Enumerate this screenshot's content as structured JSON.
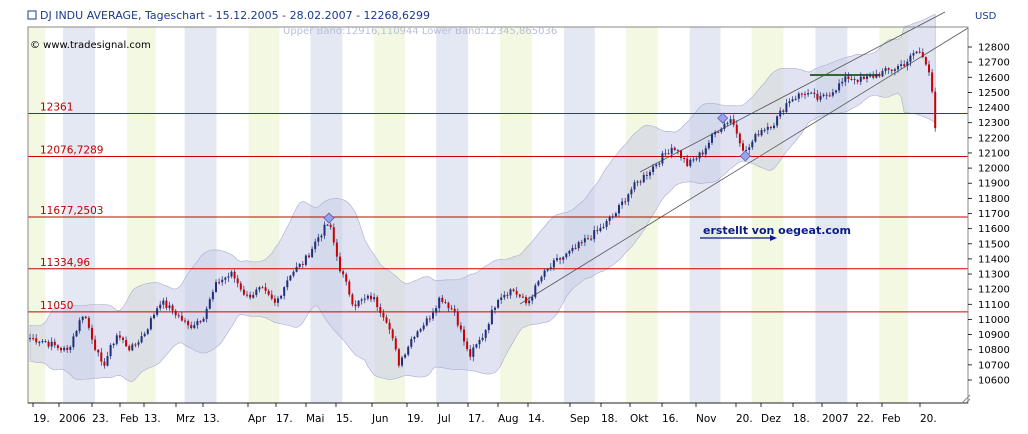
{
  "header": {
    "title": "DJ INDU AVERAGE, Tageschart - 15.12.2005 - 28.02.2007 - 12268,6299",
    "band_legend": "Upper Band:12916,110944 Lower Band:12345,865036",
    "watermark": "© www.tradesignal.com",
    "credit": "erstellt von oegeat.com",
    "currency": "USD"
  },
  "colors": {
    "support_line": "#cc0000",
    "candle_up": "#1f2f7a",
    "candle_down": "#cc0000",
    "band_fill": "#c8cce8",
    "stripe": "#e4e8f2",
    "stripe_alt": "#f3f8e2",
    "trend_line": "#555555",
    "marker": "#9aa2e8"
  },
  "chart_data": {
    "type": "candlestick",
    "title": "DJ INDU AVERAGE, Tageschart - 15.12.2005 - 28.02.2007 - 12268,6299",
    "ylabel": "USD",
    "ylim": [
      10500,
      12900
    ],
    "yticks": [
      10600,
      10700,
      10800,
      10900,
      11000,
      11100,
      11200,
      11300,
      11400,
      11500,
      11600,
      11700,
      11800,
      11900,
      12000,
      12100,
      12200,
      12300,
      12400,
      12500,
      12600,
      12700,
      12800
    ],
    "xticks": [
      "19.",
      "2006",
      "23.",
      "Feb",
      "13.",
      "Mrz",
      "13.",
      "Apr",
      "17.",
      "Mai",
      "15.",
      "Jun",
      "19.",
      "Jul",
      "17.",
      "Aug",
      "14.",
      "Sep",
      "18.",
      "Okt",
      "16.",
      "Nov",
      "20.",
      "Dez",
      "18.",
      "2007",
      "22.",
      "Feb",
      "20."
    ],
    "support_lines": [
      {
        "label": "12361",
        "value": 12361
      },
      {
        "label": "12076,7289",
        "value": 12076.7289
      },
      {
        "label": "11677,2503",
        "value": 11677.2503
      },
      {
        "label": "11334,96",
        "value": 11334.96
      },
      {
        "label": "11050",
        "value": 11050
      }
    ],
    "bollinger_last": {
      "upper": 12916.110944,
      "lower": 12345.865036
    },
    "close_path": [
      [
        "2005-12-15",
        10880
      ],
      [
        "2005-12-22",
        10860
      ],
      [
        "2006-01-03",
        10790
      ],
      [
        "2006-01-11",
        11050
      ],
      [
        "2006-01-20",
        10680
      ],
      [
        "2006-01-27",
        10900
      ],
      [
        "2006-02-03",
        10800
      ],
      [
        "2006-02-10",
        10920
      ],
      [
        "2006-02-17",
        11120
      ],
      [
        "2006-02-24",
        11050
      ],
      [
        "2006-03-03",
        10950
      ],
      [
        "2006-03-10",
        11020
      ],
      [
        "2006-03-17",
        11250
      ],
      [
        "2006-03-24",
        11300
      ],
      [
        "2006-03-31",
        11150
      ],
      [
        "2006-04-07",
        11200
      ],
      [
        "2006-04-14",
        11100
      ],
      [
        "2006-04-21",
        11300
      ],
      [
        "2006-04-28",
        11380
      ],
      [
        "2006-05-05",
        11550
      ],
      [
        "2006-05-10",
        11640
      ],
      [
        "2006-05-15",
        11350
      ],
      [
        "2006-05-22",
        11100
      ],
      [
        "2006-05-31",
        11150
      ],
      [
        "2006-06-07",
        11000
      ],
      [
        "2006-06-13",
        10710
      ],
      [
        "2006-06-20",
        10900
      ],
      [
        "2006-06-27",
        11000
      ],
      [
        "2006-07-03",
        11150
      ],
      [
        "2006-07-10",
        11050
      ],
      [
        "2006-07-17",
        10750
      ],
      [
        "2006-07-24",
        10900
      ],
      [
        "2006-07-31",
        11150
      ],
      [
        "2006-08-07",
        11200
      ],
      [
        "2006-08-14",
        11100
      ],
      [
        "2006-08-21",
        11280
      ],
      [
        "2006-08-28",
        11380
      ],
      [
        "2006-09-05",
        11450
      ],
      [
        "2006-09-12",
        11530
      ],
      [
        "2006-09-19",
        11600
      ],
      [
        "2006-09-26",
        11700
      ],
      [
        "2006-10-03",
        11850
      ],
      [
        "2006-10-10",
        11950
      ],
      [
        "2006-10-17",
        12050
      ],
      [
        "2006-10-24",
        12150
      ],
      [
        "2006-10-31",
        12020
      ],
      [
        "2006-11-07",
        12100
      ],
      [
        "2006-11-14",
        12250
      ],
      [
        "2006-11-21",
        12330
      ],
      [
        "2006-11-28",
        12100
      ],
      [
        "2006-12-05",
        12250
      ],
      [
        "2006-12-12",
        12300
      ],
      [
        "2006-12-19",
        12450
      ],
      [
        "2006-12-27",
        12500
      ],
      [
        "2007-01-03",
        12450
      ],
      [
        "2007-01-10",
        12520
      ],
      [
        "2007-01-17",
        12600
      ],
      [
        "2007-01-24",
        12580
      ],
      [
        "2007-01-31",
        12620
      ],
      [
        "2007-02-07",
        12650
      ],
      [
        "2007-02-14",
        12700
      ],
      [
        "2007-02-20",
        12780
      ],
      [
        "2007-02-26",
        12630
      ],
      [
        "2007-02-28",
        12270
      ]
    ],
    "annotations": {
      "trend_channel": "rising",
      "marked_highs": [
        {
          "date": "2006-05-10",
          "value": 11670
        },
        {
          "date": "2006-11-17",
          "value": 12330
        },
        {
          "date": "2006-11-28",
          "value": 12080
        }
      ]
    },
    "grid": false
  }
}
